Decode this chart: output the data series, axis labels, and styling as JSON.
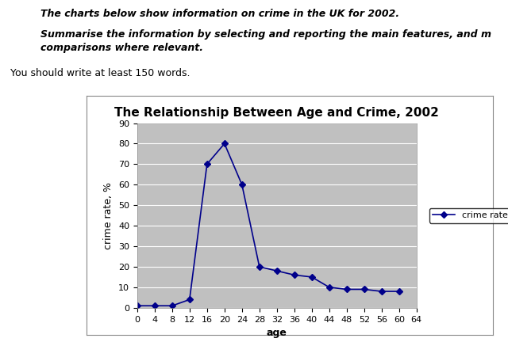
{
  "title": "The Relationship Between Age and Crime, 2002",
  "xlabel": "age",
  "ylabel": "crime rate, %",
  "x_values": [
    0,
    4,
    8,
    12,
    16,
    20,
    24,
    28,
    32,
    36,
    40,
    44,
    48,
    52,
    56,
    60
  ],
  "y_values": [
    1,
    1,
    1,
    4,
    70,
    80,
    60,
    20,
    18,
    16,
    15,
    10,
    9,
    9,
    8,
    8
  ],
  "line_color": "#00008B",
  "marker": "D",
  "marker_size": 4,
  "marker_face_color": "#00008B",
  "legend_label": "crime rate",
  "ylim": [
    0,
    90
  ],
  "yticks": [
    0,
    10,
    20,
    30,
    40,
    50,
    60,
    70,
    80,
    90
  ],
  "xticks": [
    0,
    4,
    8,
    12,
    16,
    20,
    24,
    28,
    32,
    36,
    40,
    44,
    48,
    52,
    56,
    60,
    64
  ],
  "xlim": [
    0,
    64
  ],
  "background_color": "#C0C0C0",
  "outer_background": "#FFFFFF",
  "chart_box_color": "#FFFFFF",
  "grid_color": "#FFFFFF",
  "title_fontsize": 11,
  "axis_label_fontsize": 9,
  "tick_fontsize": 8,
  "legend_fontsize": 8,
  "text1": "The charts below show information on crime in the UK for 2002.",
  "text2a": "Summarise the information by selecting and reporting the main features, and m",
  "text2b": "comparisons where relevant.",
  "text3": "You should write at least 150 words.",
  "figsize": [
    6.4,
    4.32
  ],
  "dpi": 100
}
